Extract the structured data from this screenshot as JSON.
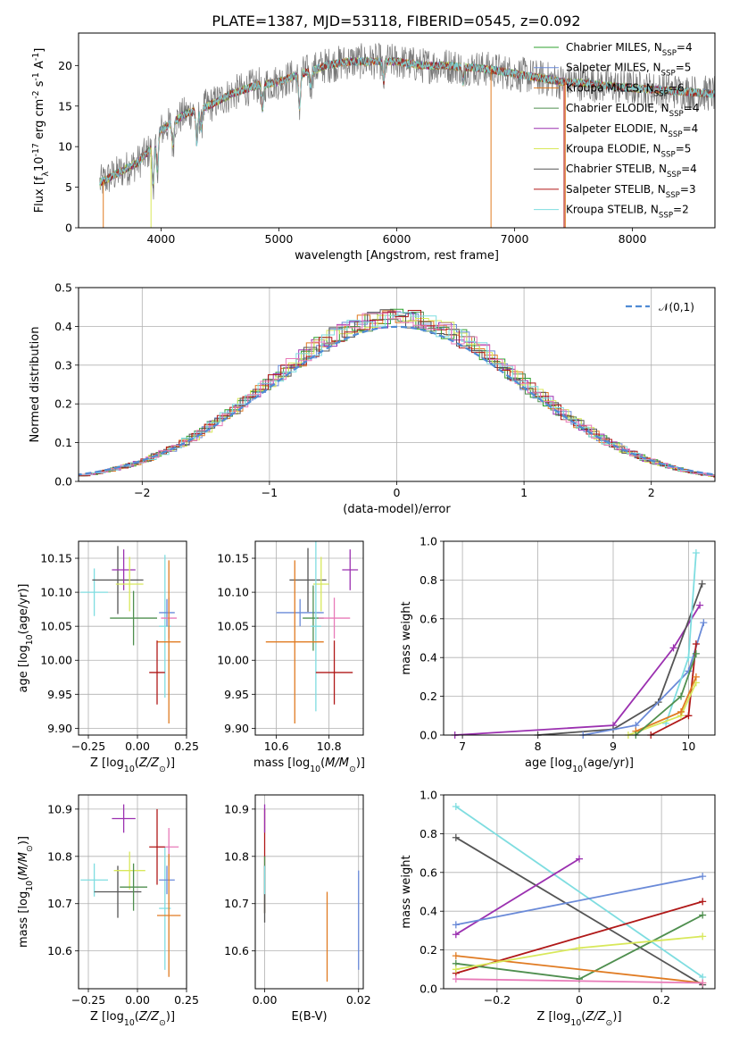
{
  "figure": {
    "title": "PLATE=1387, MJD=53118, FIBERID=0545, z=0.092"
  },
  "series_styles": [
    {
      "name": "Chabrier MILES, N$_{SSP}$=4",
      "color": "#2ca02c"
    },
    {
      "name": "Salpeter MILES, N$_{SSP}$=5",
      "color": "#6a8ad8"
    },
    {
      "name": "Kroupa MILES, N$_{SSP}$=6",
      "color": "#e07b22"
    },
    {
      "name": "Chabrier ELODIE, N$_{SSP}$=4",
      "color": "#4f8f4f"
    },
    {
      "name": "Salpeter ELODIE, N$_{SSP}$=4",
      "color": "#9b30b0"
    },
    {
      "name": "Kroupa ELODIE, N$_{SSP}$=5",
      "color": "#d8e85a"
    },
    {
      "name": "Chabrier STELIB, N$_{SSP}$=4",
      "color": "#555555"
    },
    {
      "name": "Salpeter STELIB, N$_{SSP}$=3",
      "color": "#b01818"
    },
    {
      "name": "Kroupa STELIB, N$_{SSP}$=2",
      "color": "#7fdde0"
    }
  ],
  "extra_colors": {
    "pink": "#e87ab8",
    "gaussian": "#4f8bd4"
  },
  "chart_data": [
    {
      "id": "spectrum",
      "type": "line",
      "xlabel": "wavelength [Angstrom, rest frame]",
      "ylabel": "Flux [f$_\\lambda$10$^{-17}$ erg cm$^{-2}$ s$^{-1}$ A$^{-1}$]",
      "xlim": [
        3300,
        8700
      ],
      "ylim": [
        0,
        24
      ],
      "xticks": [
        4000,
        5000,
        6000,
        7000,
        8000
      ],
      "yticks": [
        0,
        5,
        10,
        15,
        20
      ],
      "legend": "right",
      "continuum": [
        [
          3480,
          5.5
        ],
        [
          3600,
          6.5
        ],
        [
          3800,
          8
        ],
        [
          3900,
          9.5
        ],
        [
          4000,
          12
        ],
        [
          4200,
          14
        ],
        [
          4400,
          15
        ],
        [
          4600,
          16.5
        ],
        [
          4800,
          17.5
        ],
        [
          5000,
          18
        ],
        [
          5200,
          19
        ],
        [
          5400,
          20
        ],
        [
          5600,
          20.5
        ],
        [
          5800,
          20.5
        ],
        [
          6000,
          20.5
        ],
        [
          6200,
          20
        ],
        [
          6400,
          20
        ],
        [
          6600,
          19.8
        ],
        [
          6800,
          19.5
        ],
        [
          7000,
          19
        ],
        [
          7200,
          18.5
        ],
        [
          7400,
          18
        ],
        [
          7600,
          17.8
        ],
        [
          7800,
          17.5
        ],
        [
          8000,
          17.2
        ],
        [
          8200,
          17
        ],
        [
          8400,
          16.8
        ],
        [
          8700,
          16.5
        ]
      ],
      "absorption_lines": [
        [
          3933,
          5
        ],
        [
          3968,
          4
        ],
        [
          4101,
          3
        ],
        [
          4304,
          4
        ],
        [
          4340,
          2.5
        ],
        [
          4861,
          3
        ],
        [
          5175,
          4
        ],
        [
          5270,
          2
        ],
        [
          5890,
          2.5
        ],
        [
          6563,
          2
        ]
      ],
      "clipped_models": [
        [
          3510,
          "#e07b22"
        ],
        [
          3915,
          "#d8e85a"
        ],
        [
          6800,
          "#e07b22"
        ],
        [
          7420,
          "#b01818"
        ],
        [
          7430,
          "#e07b22"
        ]
      ]
    },
    {
      "id": "residual_histogram",
      "type": "bar",
      "xlabel": "(data-model)/error",
      "ylabel": "Normed distribution",
      "xlim": [
        -2.5,
        2.5
      ],
      "ylim": [
        0,
        0.5
      ],
      "xticks": [
        -2,
        -1,
        0,
        1,
        2
      ],
      "yticks": [
        0,
        0.1,
        0.2,
        0.3,
        0.4,
        0.5
      ],
      "bin_width": 0.1,
      "legend_label": "$\\mathcal{N}(0,1)$",
      "legend": "top-right"
    },
    {
      "id": "age_vs_Z",
      "type": "scatter",
      "xlabel": "Z [log$_{10}$($Z/Z_\\odot$)]",
      "ylabel": "age  [log$_{10}$($age/yr$)]",
      "xlim": [
        -0.3,
        0.25
      ],
      "ylim": [
        9.89,
        10.175
      ],
      "xticks": [
        -0.25,
        0,
        0.25
      ],
      "xticklabels": [
        "−0.25",
        "0.00",
        "0.25"
      ],
      "yticks": [
        9.9,
        9.95,
        10.0,
        10.05,
        10.1,
        10.15
      ],
      "points": [
        {
          "x": -0.22,
          "xerr": 0.07,
          "y": 10.1,
          "yerr": 0.035,
          "color": "#7fdde0"
        },
        {
          "x": -0.1,
          "xerr": 0.13,
          "y": 10.118,
          "yerr": 0.05,
          "color": "#555555"
        },
        {
          "x": -0.07,
          "xerr": 0.06,
          "y": 10.133,
          "yerr": 0.03,
          "color": "#9b30b0"
        },
        {
          "x": -0.04,
          "xerr": 0.07,
          "y": 10.112,
          "yerr": 0.04,
          "color": "#d8e85a"
        },
        {
          "x": -0.02,
          "xerr": 0.12,
          "y": 10.062,
          "yerr": 0.04,
          "color": "#4f8f4f"
        },
        {
          "x": 0.14,
          "xerr": 0.03,
          "y": 10.05,
          "yerr": 0.105,
          "color": "#7fdde0"
        },
        {
          "x": 0.15,
          "xerr": 0.04,
          "y": 10.07,
          "yerr": 0.02,
          "color": "#6a8ad8"
        },
        {
          "x": 0.16,
          "xerr": 0.04,
          "y": 10.062,
          "yerr": 0.03,
          "color": "#e87ab8"
        },
        {
          "x": 0.16,
          "xerr": 0.06,
          "y": 10.027,
          "yerr": 0.12,
          "color": "#e07b22"
        },
        {
          "x": 0.1,
          "xerr": 0.04,
          "y": 9.982,
          "yerr": 0.047,
          "color": "#b01818"
        }
      ]
    },
    {
      "id": "age_vs_mass",
      "type": "scatter",
      "xlabel": "mass [log$_{10}$($M/M_\\odot$)]",
      "ylabel": "",
      "xlim": [
        10.52,
        10.93
      ],
      "ylim": [
        9.89,
        10.175
      ],
      "xticks": [
        10.6,
        10.8
      ],
      "xticklabels": [
        "10.6",
        "10.8"
      ],
      "yticks": [
        9.9,
        9.95,
        10.0,
        10.05,
        10.1,
        10.15
      ],
      "points": [
        {
          "x": 10.72,
          "xerr": 0.07,
          "y": 10.118,
          "yerr": 0.047,
          "color": "#555555"
        },
        {
          "x": 10.88,
          "xerr": 0.03,
          "y": 10.133,
          "yerr": 0.03,
          "color": "#9b30b0"
        },
        {
          "x": 10.77,
          "xerr": 0.03,
          "y": 10.112,
          "yerr": 0.04,
          "color": "#d8e85a"
        },
        {
          "x": 10.69,
          "xerr": 0.09,
          "y": 10.07,
          "yerr": 0.02,
          "color": "#6a8ad8"
        },
        {
          "x": 10.74,
          "xerr": 0.04,
          "y": 10.062,
          "yerr": 0.048,
          "color": "#4f8f4f"
        },
        {
          "x": 10.82,
          "xerr": 0.06,
          "y": 10.062,
          "yerr": 0.03,
          "color": "#e87ab8"
        },
        {
          "x": 10.75,
          "xerr": 0.02,
          "y": 10.05,
          "yerr": 0.125,
          "color": "#7fdde0"
        },
        {
          "x": 10.67,
          "xerr": 0.11,
          "y": 10.027,
          "yerr": 0.12,
          "color": "#e07b22"
        },
        {
          "x": 10.82,
          "xerr": 0.07,
          "y": 9.982,
          "yerr": 0.047,
          "color": "#b01818"
        }
      ]
    },
    {
      "id": "weight_vs_age",
      "type": "line",
      "xlabel": "age  [log$_{10}$($age/yr$)]",
      "ylabel": "mass weight",
      "xlim": [
        6.75,
        10.35
      ],
      "ylim": [
        0,
        1
      ],
      "xticks": [
        7,
        8,
        9,
        10
      ],
      "yticks": [
        0,
        0.2,
        0.4,
        0.6,
        0.8,
        1.0
      ],
      "series": [
        {
          "color": "#9b30b0",
          "x": [
            6.9,
            9.0,
            9.8,
            10.15
          ],
          "y": [
            0.0,
            0.05,
            0.45,
            0.67
          ]
        },
        {
          "color": "#555555",
          "x": [
            8.0,
            9.0,
            9.6,
            10.18
          ],
          "y": [
            0.0,
            0.03,
            0.17,
            0.78
          ]
        },
        {
          "color": "#6a8ad8",
          "x": [
            8.6,
            9.3,
            10.0,
            10.2
          ],
          "y": [
            0.0,
            0.05,
            0.33,
            0.58
          ]
        },
        {
          "color": "#7fdde0",
          "x": [
            9.7,
            10.0,
            10.1
          ],
          "y": [
            0.06,
            0.4,
            0.94
          ]
        },
        {
          "color": "#b01818",
          "x": [
            9.5,
            10.0,
            10.1
          ],
          "y": [
            0.0,
            0.1,
            0.47
          ]
        },
        {
          "color": "#d8e85a",
          "x": [
            9.2,
            9.9,
            10.1
          ],
          "y": [
            0.0,
            0.1,
            0.27
          ]
        },
        {
          "color": "#e07b22",
          "x": [
            9.3,
            9.9,
            10.1
          ],
          "y": [
            0.02,
            0.12,
            0.3
          ]
        },
        {
          "color": "#4f8f4f",
          "x": [
            9.3,
            9.9,
            10.1
          ],
          "y": [
            0.0,
            0.2,
            0.42
          ]
        }
      ]
    },
    {
      "id": "mass_vs_Z",
      "type": "scatter",
      "xlabel": "Z [log$_{10}$($Z/Z_\\odot$)]",
      "ylabel": "mass [log$_{10}$($M/M_\\odot$)]",
      "xlim": [
        -0.3,
        0.25
      ],
      "ylim": [
        10.52,
        10.93
      ],
      "xticks": [
        -0.25,
        0,
        0.25
      ],
      "xticklabels": [
        "−0.25",
        "0.00",
        "0.25"
      ],
      "yticks": [
        10.6,
        10.7,
        10.8,
        10.9
      ],
      "points": [
        {
          "x": -0.22,
          "xerr": 0.07,
          "y": 10.75,
          "yerr": 0.035,
          "color": "#7fdde0"
        },
        {
          "x": -0.1,
          "xerr": 0.12,
          "y": 10.725,
          "yerr": 0.055,
          "color": "#555555"
        },
        {
          "x": -0.07,
          "xerr": 0.06,
          "y": 10.88,
          "yerr": 0.03,
          "color": "#9b30b0"
        },
        {
          "x": -0.04,
          "xerr": 0.08,
          "y": 10.77,
          "yerr": 0.04,
          "color": "#d8e85a"
        },
        {
          "x": -0.02,
          "xerr": 0.07,
          "y": 10.735,
          "yerr": 0.05,
          "color": "#4f8f4f"
        },
        {
          "x": 0.14,
          "xerr": 0.03,
          "y": 10.69,
          "yerr": 0.13,
          "color": "#7fdde0"
        },
        {
          "x": 0.15,
          "xerr": 0.04,
          "y": 10.75,
          "yerr": 0.03,
          "color": "#6a8ad8"
        },
        {
          "x": 0.16,
          "xerr": 0.05,
          "y": 10.82,
          "yerr": 0.04,
          "color": "#e87ab8"
        },
        {
          "x": 0.16,
          "xerr": 0.06,
          "y": 10.675,
          "yerr": 0.13,
          "color": "#e07b22"
        },
        {
          "x": 0.1,
          "xerr": 0.04,
          "y": 10.82,
          "yerr": 0.08,
          "color": "#b01818"
        }
      ]
    },
    {
      "id": "mass_vs_EBV",
      "type": "scatter",
      "xlabel": "E(B-V)",
      "ylabel": "",
      "xlim": [
        -0.002,
        0.021
      ],
      "ylim": [
        10.52,
        10.93
      ],
      "xticks": [
        0.0,
        0.02
      ],
      "xticklabels": [
        "0.00",
        "0.02"
      ],
      "yticks": [
        10.6,
        10.7,
        10.8,
        10.9
      ],
      "points": [
        {
          "x": 0.0,
          "xerr": 0,
          "y": 10.79,
          "yerr": 0.11,
          "color": "#b01818"
        },
        {
          "x": 0.0,
          "xerr": 0,
          "y": 10.74,
          "yerr": 0.06,
          "color": "#4f8f4f"
        },
        {
          "x": 0.0,
          "xerr": 0,
          "y": 10.72,
          "yerr": 0.06,
          "color": "#555555"
        },
        {
          "x": 0.0,
          "xerr": 0,
          "y": 10.75,
          "yerr": 0.03,
          "color": "#7fdde0"
        },
        {
          "x": 0.0,
          "xerr": 0,
          "y": 10.88,
          "yerr": 0.03,
          "color": "#9b30b0"
        },
        {
          "x": 0.0133,
          "xerr": 0,
          "y": 10.63,
          "yerr": 0.095,
          "color": "#e07b22"
        },
        {
          "x": 0.02,
          "xerr": 0,
          "y": 10.665,
          "yerr": 0.105,
          "color": "#6a8ad8"
        }
      ]
    },
    {
      "id": "weight_vs_Z",
      "type": "line",
      "xlabel": "Z [log$_{10}$($Z/Z_\\odot$)]",
      "ylabel": "mass weight",
      "xlim": [
        -0.33,
        0.33
      ],
      "ylim": [
        0,
        1
      ],
      "xticks": [
        -0.2,
        0.0,
        0.2
      ],
      "yticks": [
        0,
        0.2,
        0.4,
        0.6,
        0.8,
        1.0
      ],
      "series": [
        {
          "color": "#7fdde0",
          "x": [
            -0.3,
            0.3
          ],
          "y": [
            0.94,
            0.06
          ]
        },
        {
          "color": "#555555",
          "x": [
            -0.3,
            0.3
          ],
          "y": [
            0.78,
            0.02
          ]
        },
        {
          "color": "#9b30b0",
          "x": [
            -0.3,
            0.0
          ],
          "y": [
            0.28,
            0.67
          ]
        },
        {
          "color": "#6a8ad8",
          "x": [
            -0.3,
            0.3
          ],
          "y": [
            0.33,
            0.58
          ]
        },
        {
          "color": "#b01818",
          "x": [
            -0.3,
            0.3
          ],
          "y": [
            0.08,
            0.45
          ]
        },
        {
          "color": "#4f8f4f",
          "x": [
            -0.3,
            0.0,
            0.3
          ],
          "y": [
            0.13,
            0.05,
            0.38
          ]
        },
        {
          "color": "#e07b22",
          "x": [
            -0.3,
            0.3
          ],
          "y": [
            0.17,
            0.03
          ]
        },
        {
          "color": "#d8e85a",
          "x": [
            -0.3,
            0.0,
            0.3
          ],
          "y": [
            0.1,
            0.21,
            0.27
          ]
        },
        {
          "color": "#e87ab8",
          "x": [
            -0.3,
            0.3
          ],
          "y": [
            0.05,
            0.03
          ]
        }
      ]
    }
  ]
}
